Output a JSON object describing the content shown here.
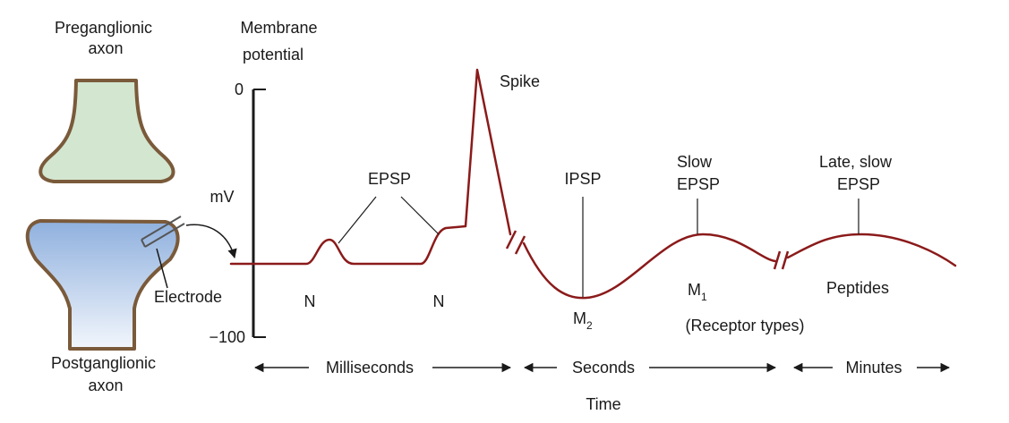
{
  "labels": {
    "preganglionic": [
      "Preganglionic",
      "axon"
    ],
    "postganglionic": [
      "Postganglionic",
      "axon"
    ],
    "membrane_potential": [
      "Membrane",
      "potential"
    ],
    "mv": "mV",
    "y_top": "0",
    "y_bottom": "−100",
    "electrode": "Electrode",
    "spike": "Spike",
    "epsp": "EPSP",
    "ipsp": "IPSP",
    "slow_epsp": [
      "Slow",
      "EPSP"
    ],
    "late_slow_epsp": [
      "Late, slow",
      "EPSP"
    ],
    "n1": "N",
    "n2": "N",
    "m2": {
      "main": "M",
      "sub": "2"
    },
    "m1": {
      "main": "M",
      "sub": "1"
    },
    "peptides": "Peptides",
    "receptor_types": "(Receptor types)",
    "milliseconds": "Milliseconds",
    "seconds": "Seconds",
    "minutes": "Minutes",
    "time": "Time"
  },
  "colors": {
    "trace": "#8b1a1a",
    "pre_fill": "#d3e6d0",
    "post_fill_top": "#8fb0de",
    "post_fill_bottom": "#f2f6fc",
    "terminal_stroke": "#7a5a3a",
    "text": "#1a1a1a"
  }
}
